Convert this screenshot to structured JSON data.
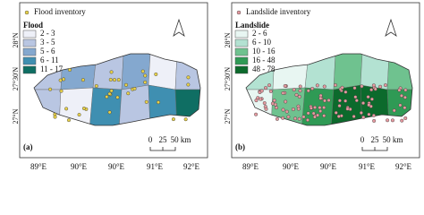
{
  "panels": [
    {
      "inventory_label": "Flood inventory",
      "legend_title": "Flood",
      "classes": [
        {
          "label": "2 - 3",
          "color": "#eef0f8"
        },
        {
          "label": "3 - 5",
          "color": "#b9c6e2"
        },
        {
          "label": "5 - 6",
          "color": "#84a8cf"
        },
        {
          "label": "6 - 11",
          "color": "#3f8fb1"
        },
        {
          "label": "11 - 17",
          "color": "#0f6e63"
        }
      ],
      "panel_label": "(a)",
      "scale_labels": [
        "0",
        "25",
        "50 km"
      ],
      "lat_labels": [
        "28°N",
        "27°30'N",
        "27°N"
      ],
      "lon_labels": [
        "89°E",
        "90°E",
        "90°E",
        "91°E",
        "92°E"
      ]
    },
    {
      "inventory_label": "Landslide inventory",
      "legend_title": "Landslide",
      "classes": [
        {
          "label": "2 - 6",
          "color": "#e8f6f2"
        },
        {
          "label": "6 - 10",
          "color": "#b3e2d2"
        },
        {
          "label": "10 - 16",
          "color": "#6fc28f"
        },
        {
          "label": "16 - 48",
          "color": "#2f9a55"
        },
        {
          "label": "48 - 78",
          "color": "#0c6a2c"
        }
      ],
      "panel_label": "(b)",
      "scale_labels": [
        "0",
        "25",
        "50 km"
      ],
      "lat_labels": [
        "28°N",
        "27°30'N",
        "27°N"
      ],
      "lon_labels": [
        "89°E",
        "90°E",
        "90°E",
        "91°E",
        "92°E"
      ]
    }
  ]
}
